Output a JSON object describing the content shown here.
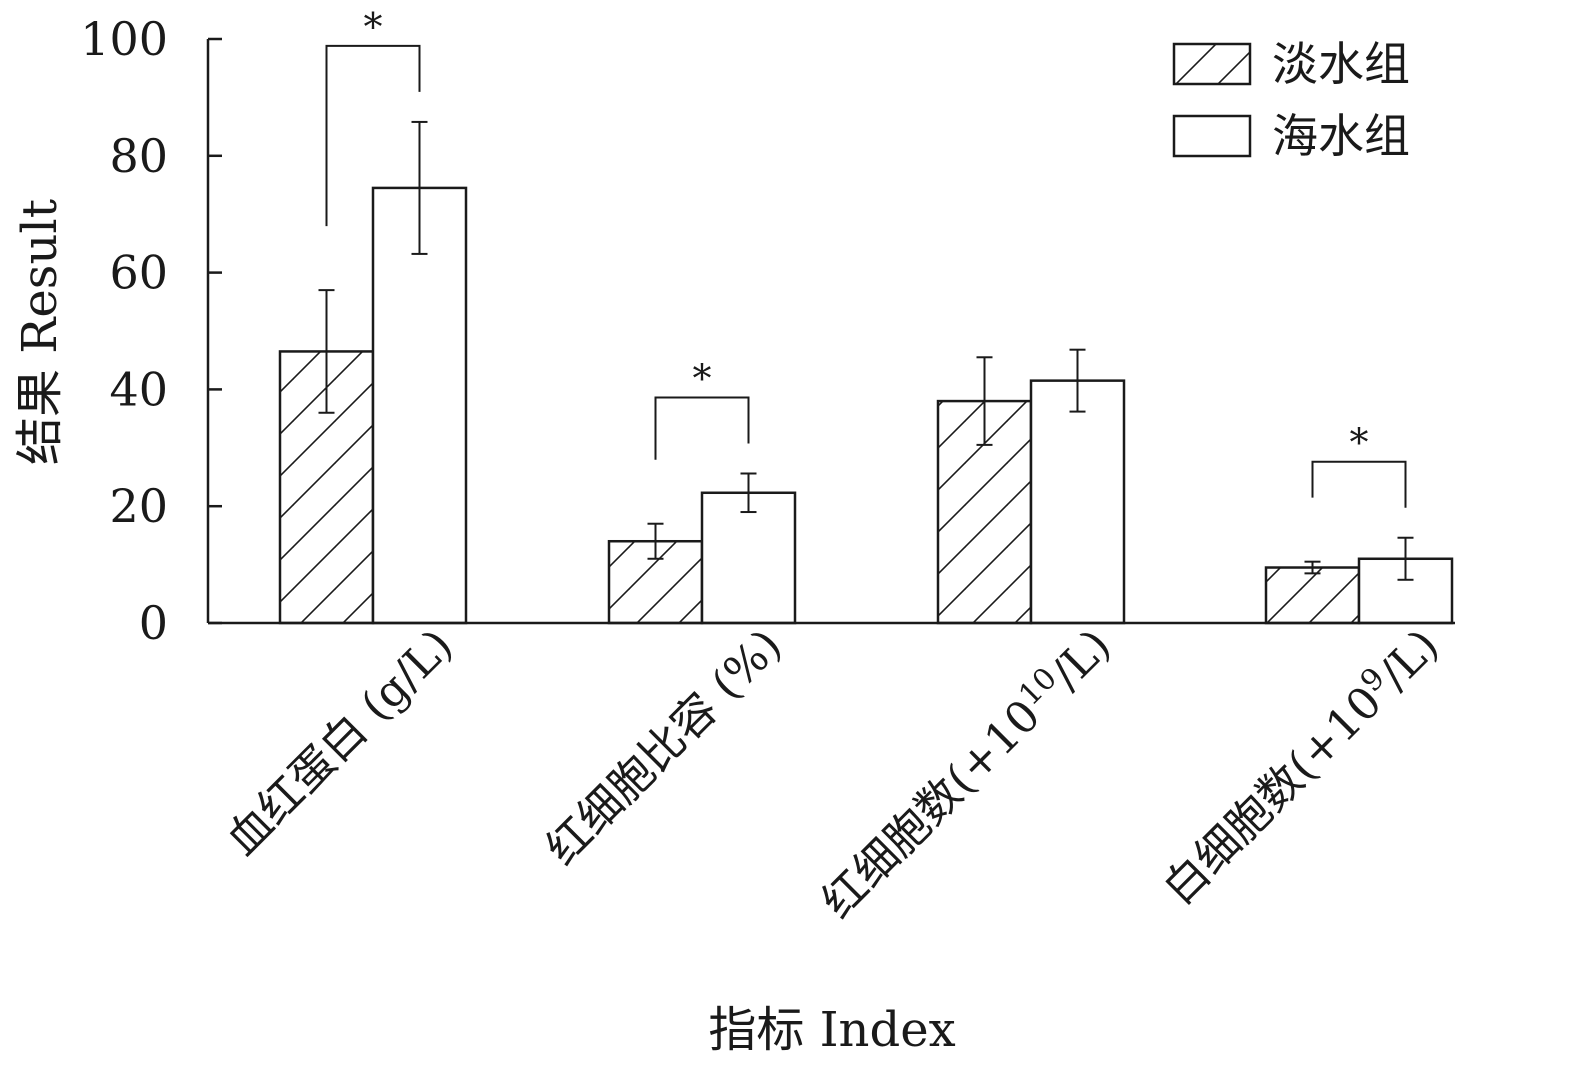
{
  "chart_data": {
    "type": "bar",
    "xlabel": "指标 Index",
    "ylabel": "结果 Result",
    "ylim": [
      0,
      100
    ],
    "yticks": [
      "0",
      "20",
      "40",
      "60",
      "80",
      "100"
    ],
    "categories": [
      {
        "main": "血红蛋白 (g/L)",
        "pre": "",
        "sup": "",
        "post": ""
      },
      {
        "main": "红细胞比容 (%)",
        "pre": "",
        "sup": "",
        "post": ""
      },
      {
        "main": "",
        "pre": "红细胞数(+10",
        "sup": "10",
        "post": "/L)"
      },
      {
        "main": "",
        "pre": "白细胞数(+10",
        "sup": "9",
        "post": "/L)"
      }
    ],
    "series": [
      {
        "name": "淡水组",
        "pattern": "hatched",
        "values": [
          46.5,
          14,
          38,
          9.5
        ],
        "errors": [
          10.5,
          3,
          7.5,
          1
        ]
      },
      {
        "name": "海水组",
        "pattern": "open",
        "values": [
          74.5,
          22.3,
          41.5,
          11
        ],
        "errors": [
          11.3,
          3.3,
          5.3,
          3.6
        ]
      }
    ],
    "significance": [
      {
        "category": 0,
        "label": "*"
      },
      {
        "category": 1,
        "label": "*"
      },
      {
        "category": 3,
        "label": "*"
      }
    ],
    "legend_position": "top-right",
    "grid": false
  }
}
